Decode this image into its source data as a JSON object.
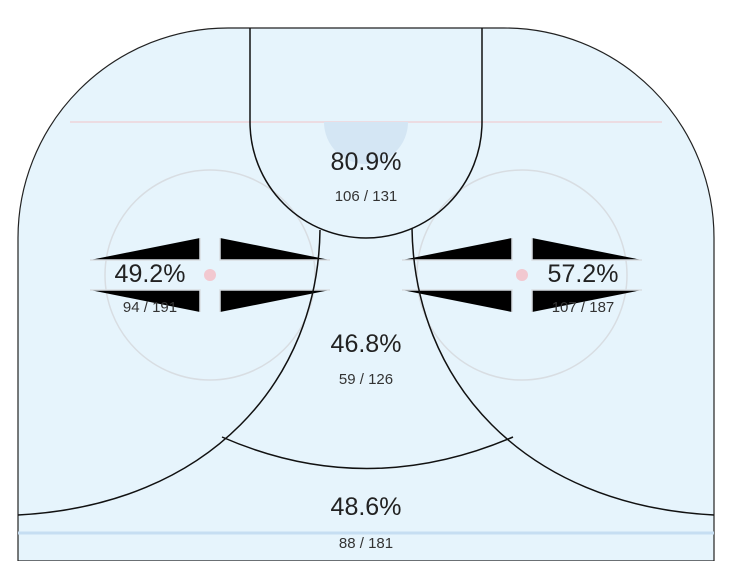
{
  "zones": [
    {
      "percent": "80.9%",
      "made_total": "106 / 131"
    },
    {
      "percent": "49.2%",
      "made_total": "94 / 191"
    },
    {
      "percent": "57.2%",
      "made_total": "107 / 187"
    },
    {
      "percent": "46.8%",
      "made_total": "59 / 126"
    },
    {
      "percent": "48.6%",
      "made_total": "88 / 181"
    }
  ]
}
